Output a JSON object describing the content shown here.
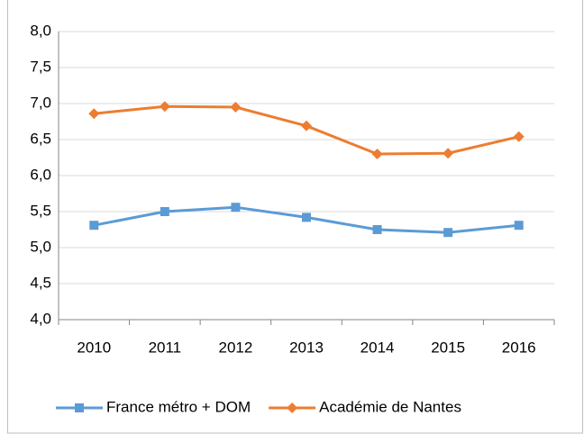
{
  "chart_data": {
    "type": "line",
    "categories": [
      "2010",
      "2011",
      "2012",
      "2013",
      "2014",
      "2015",
      "2016"
    ],
    "series": [
      {
        "name": "France métro + DOM",
        "color": "#5b9bd5",
        "marker": "square",
        "values": [
          5.31,
          5.5,
          5.56,
          5.42,
          5.25,
          5.21,
          5.31
        ]
      },
      {
        "name": "Académie de Nantes",
        "color": "#ed7d31",
        "marker": "diamond",
        "values": [
          6.86,
          6.96,
          6.95,
          6.69,
          6.3,
          6.31,
          6.54
        ]
      }
    ],
    "ylim": [
      4,
      8
    ],
    "yticks": [
      {
        "value": 4,
        "label": "4,0"
      },
      {
        "value": 4.5,
        "label": "4,5"
      },
      {
        "value": 5,
        "label": "5,0"
      },
      {
        "value": 5.5,
        "label": "5,5"
      },
      {
        "value": 6,
        "label": "6,0"
      },
      {
        "value": 6.5,
        "label": "6,5"
      },
      {
        "value": 7,
        "label": "7,0"
      },
      {
        "value": 7.5,
        "label": "7,5"
      },
      {
        "value": 8,
        "label": "8,0"
      }
    ],
    "grid": true,
    "legend": "bottom"
  }
}
